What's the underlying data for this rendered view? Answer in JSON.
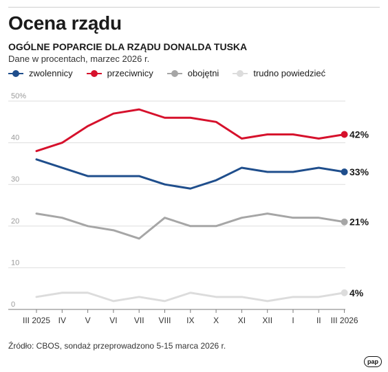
{
  "header": {
    "title": "Ocena rządu",
    "subtitle": "OGÓLNE POPARCIE DLA RZĄDU DONALDA TUSKA",
    "note": "Dane w procentach, marzec 2026 r."
  },
  "footer": {
    "source": "Źródło: CBOS, sondaż przeprowadzono 5-15 marca 2026 r.",
    "logo": "pap"
  },
  "chart_data": {
    "type": "line",
    "categories": [
      "III 2025",
      "IV",
      "V",
      "VI",
      "VII",
      "VIII",
      "IX",
      "X",
      "XI",
      "XII",
      "I",
      "II",
      "III 2026"
    ],
    "ylim": [
      0,
      50
    ],
    "yticks": [
      "0",
      "10",
      "20",
      "30",
      "40",
      "50%"
    ],
    "grid": true,
    "legend_position": "top-left",
    "series": [
      {
        "name": "zwolennicy",
        "color": "#1f4e8c",
        "end_label": "33%",
        "values": [
          36,
          34,
          32,
          32,
          32,
          30,
          29,
          31,
          34,
          33,
          33,
          34,
          33
        ]
      },
      {
        "name": "przeciwnicy",
        "color": "#d6112c",
        "end_label": "42%",
        "values": [
          38,
          40,
          44,
          47,
          48,
          46,
          46,
          45,
          41,
          42,
          42,
          41,
          42
        ]
      },
      {
        "name": "obojętni",
        "color": "#a6a6a6",
        "end_label": "21%",
        "values": [
          23,
          22,
          20,
          19,
          17,
          22,
          20,
          20,
          22,
          23,
          22,
          22,
          21
        ]
      },
      {
        "name": "trudno powiedzieć",
        "color": "#dcdcdc",
        "end_label": "4%",
        "values": [
          3,
          4,
          4,
          2,
          3,
          2,
          4,
          3,
          3,
          2,
          3,
          3,
          4
        ]
      }
    ]
  }
}
